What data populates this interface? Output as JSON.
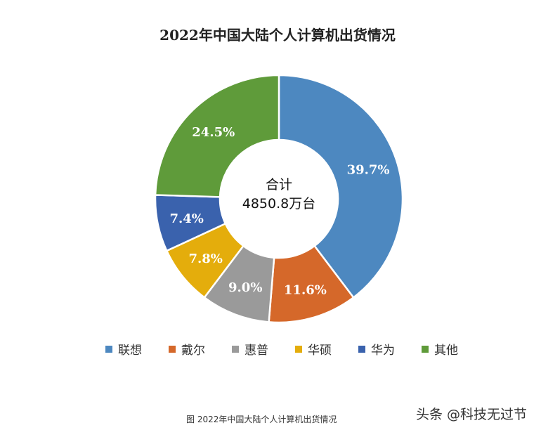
{
  "chart_data": {
    "type": "pie",
    "title": "2022年中国大陆个人计算机出货情况",
    "donut": true,
    "center_label": [
      "合计",
      "4850.8万台"
    ],
    "categories": [
      "联想",
      "戴尔",
      "惠普",
      "华硕",
      "华为",
      "其他"
    ],
    "values": [
      39.7,
      11.6,
      9.0,
      7.8,
      7.4,
      24.5
    ],
    "data_labels": [
      "39.7%",
      "11.6%",
      "9.0%",
      "7.8%",
      "7.4%",
      "24.5%"
    ],
    "colors": [
      "#4d88c0",
      "#d5682a",
      "#9a9a9a",
      "#e4ad0c",
      "#3a62ad",
      "#5f9b3a"
    ],
    "legend_position": "bottom"
  },
  "caption": "图 2022年中国大陆个人计算机出货情况",
  "watermark": "头条 @科技无过节"
}
